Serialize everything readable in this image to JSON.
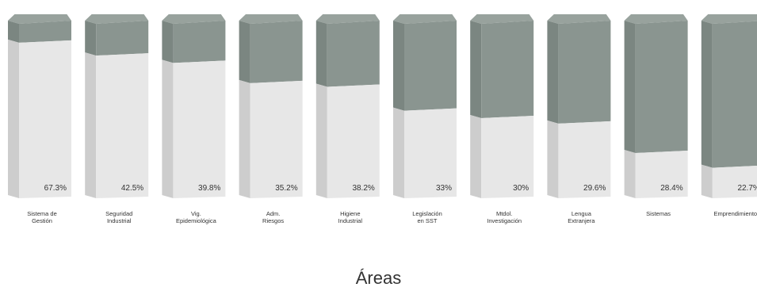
{
  "chart_data": {
    "type": "bar",
    "style": "3d-stacked-percentage",
    "xlabel": "Áreas",
    "categories": [
      [
        "Sistema de",
        "Gestión"
      ],
      [
        "Seguridad",
        "Industrial"
      ],
      [
        "Vig.",
        "Epidemiológica"
      ],
      [
        "Adm.",
        "Riesgos"
      ],
      [
        "Higiene",
        "Industrial"
      ],
      [
        "Legislación",
        "en SST"
      ],
      [
        "Mtdol.",
        "Investigación"
      ],
      [
        "Lengua",
        "Extranjera"
      ],
      [
        "Sistemas"
      ],
      [
        "Emprendimiento"
      ]
    ],
    "values": [
      67.3,
      42.5,
      39.8,
      35.2,
      38.2,
      33,
      30,
      29.6,
      28.4,
      22.7
    ],
    "value_labels": [
      "67.3%",
      "42.5%",
      "39.8%",
      "35.2%",
      "38.2%",
      "33%",
      "30%",
      "29.6%",
      "28.4%",
      "22.7%"
    ],
    "segment_top_fractions": [
      0.12,
      0.19,
      0.23,
      0.34,
      0.36,
      0.49,
      0.53,
      0.56,
      0.72,
      0.8
    ],
    "ylim": [
      0,
      100
    ],
    "grid": false,
    "legend": "none",
    "colors": {
      "top_segment": "#8a9590",
      "top_segment_side": "#7b8681",
      "top_cap": "#98a29d",
      "bottom_front": "#e7e7e7",
      "bottom_side": "#cdcdcd",
      "text": "#333333"
    }
  }
}
